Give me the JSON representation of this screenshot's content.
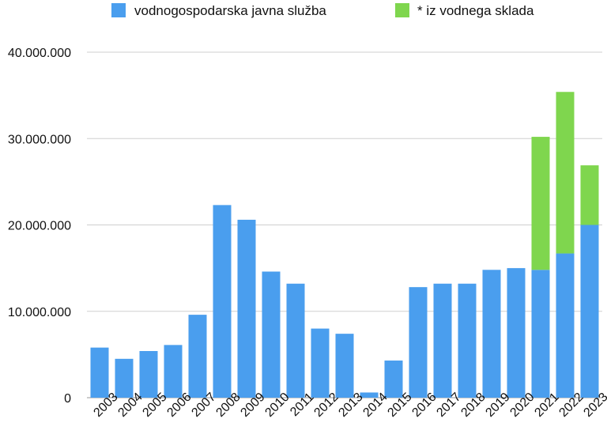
{
  "chart_data": {
    "type": "bar",
    "stacked": true,
    "title": "",
    "xlabel": "",
    "ylabel": "",
    "ylim": [
      0,
      40000000
    ],
    "y_ticks": [
      0,
      10000000,
      20000000,
      30000000,
      40000000
    ],
    "y_tick_labels": [
      "0",
      "10.000.000",
      "20.000.000",
      "30.000.000",
      "40.000.000"
    ],
    "grid": true,
    "legend": "top",
    "categories": [
      "2003",
      "2004",
      "2005",
      "2006",
      "2007",
      "2008",
      "2009",
      "2010",
      "2011",
      "2012",
      "2013",
      "2014",
      "2015",
      "2016",
      "2017",
      "2018",
      "2019",
      "2020",
      "2021",
      "2022",
      "2023"
    ],
    "series": [
      {
        "name": "vodnogospodarska javna služba",
        "color": "#4a9eee",
        "values": [
          5800000,
          4500000,
          5400000,
          6100000,
          9600000,
          22300000,
          20600000,
          14600000,
          13200000,
          8000000,
          7400000,
          600000,
          4300000,
          12800000,
          13200000,
          13200000,
          14800000,
          15000000,
          14800000,
          16700000,
          20000000
        ]
      },
      {
        "name": "* iz vodnega sklada",
        "color": "#7fd64e",
        "values": [
          0,
          0,
          0,
          0,
          0,
          0,
          0,
          0,
          0,
          0,
          0,
          0,
          0,
          0,
          0,
          0,
          0,
          0,
          15400000,
          18700000,
          6900000
        ]
      }
    ]
  }
}
